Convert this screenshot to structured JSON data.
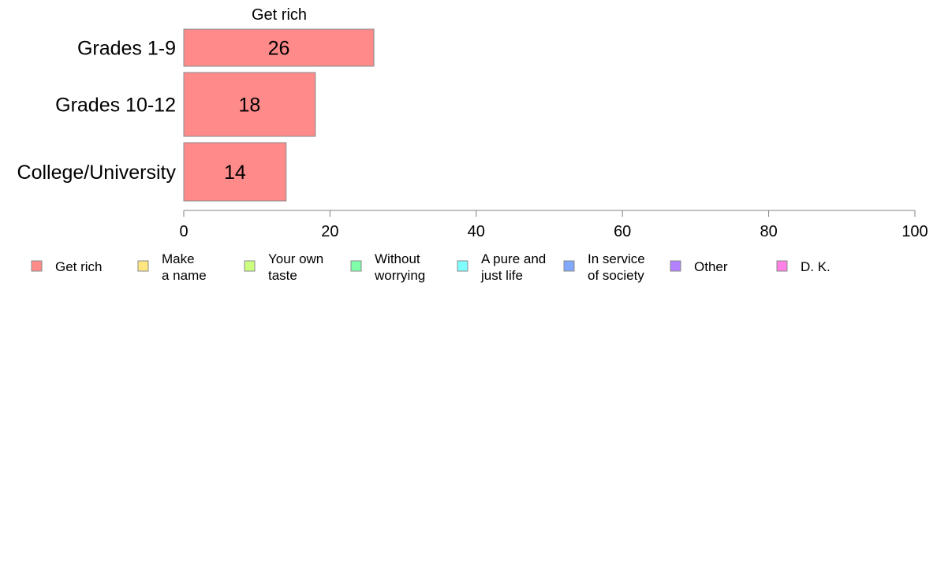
{
  "chart_data": {
    "type": "bar",
    "orientation": "horizontal",
    "title": "Get rich",
    "categories": [
      "Grades 1-9",
      "Grades 10-12",
      "College/University"
    ],
    "series": [
      {
        "name": "Get rich",
        "values": [
          26,
          18,
          14
        ],
        "labels": [
          "26",
          "18",
          "14"
        ],
        "color": "#ff8a8a"
      }
    ],
    "xlim": [
      0,
      100
    ],
    "x_ticks": [
      0,
      20,
      40,
      60,
      80,
      100
    ],
    "x_tick_labels": [
      "0",
      "20",
      "40",
      "60",
      "80",
      "100"
    ],
    "grid": false,
    "legend_position": "bottom",
    "legend": [
      {
        "label": "Get rich",
        "color": "#ff8a8a"
      },
      {
        "label": "Make\na name",
        "color": "#ffe680"
      },
      {
        "label": "Your own\ntaste",
        "color": "#ccff80"
      },
      {
        "label": "Without\nworrying",
        "color": "#80ffaa"
      },
      {
        "label": "A pure and\njust life",
        "color": "#80ffff"
      },
      {
        "label": "In service\nof society",
        "color": "#80a8ff"
      },
      {
        "label": "Other",
        "color": "#b380ff"
      },
      {
        "label": "D. K.",
        "color": "#ff80e6"
      }
    ]
  }
}
